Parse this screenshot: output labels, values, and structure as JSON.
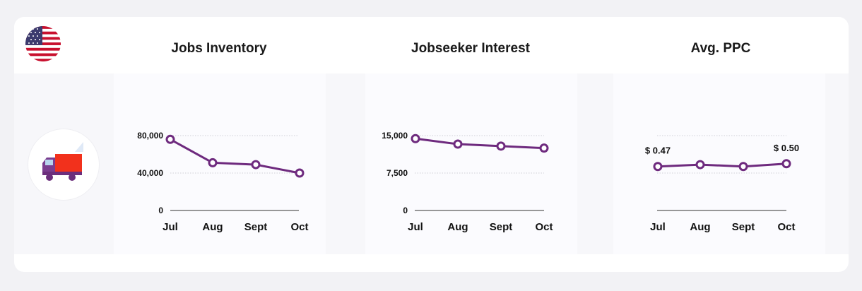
{
  "colors": {
    "series": "#6e2a7e",
    "background": "#f2f2f5",
    "card": "#ffffff"
  },
  "header": {
    "flag_icon": "us-flag-icon",
    "category_icon": "truck-icon"
  },
  "chart_data": [
    {
      "type": "line",
      "title": "Jobs Inventory",
      "categories": [
        "Jul",
        "Aug",
        "Sept",
        "Oct"
      ],
      "values": [
        76000,
        51000,
        49000,
        40000
      ],
      "yticks": [
        0,
        40000,
        80000
      ],
      "ytick_labels": [
        "0",
        "40,000",
        "80,000"
      ],
      "ylim": [
        0,
        80000
      ],
      "data_labels": [
        "",
        "",
        "",
        ""
      ]
    },
    {
      "type": "line",
      "title": "Jobseeker Interest",
      "categories": [
        "Jul",
        "Aug",
        "Sept",
        "Oct"
      ],
      "values": [
        14400,
        13300,
        12900,
        12500
      ],
      "yticks": [
        0,
        7500,
        15000
      ],
      "ytick_labels": [
        "0",
        "7,500",
        "15,000"
      ],
      "ylim": [
        0,
        15000
      ],
      "data_labels": [
        "",
        "",
        "",
        ""
      ]
    },
    {
      "type": "line",
      "title": "Avg. PPC",
      "categories": [
        "Jul",
        "Aug",
        "Sept",
        "Oct"
      ],
      "values": [
        0.47,
        0.49,
        0.47,
        0.5
      ],
      "yticks": [],
      "ytick_labels": [],
      "ylim": [
        0,
        0.8
      ],
      "data_labels": [
        "$ 0.47",
        "",
        "",
        "$ 0.50"
      ]
    }
  ]
}
